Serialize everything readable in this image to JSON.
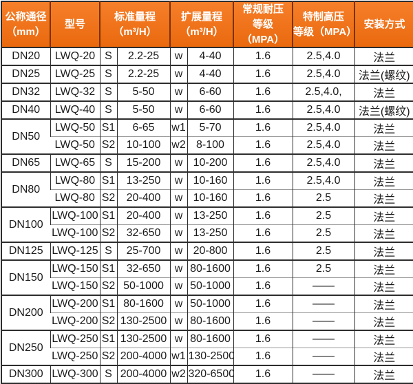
{
  "colors": {
    "header_gradient_top": "#f67f2a",
    "header_gradient_bottom": "#ea690e",
    "header_divider": "#7a3200",
    "header_text": "#ffffff",
    "outer_border": "#2d2d2d",
    "group_border": "#2d2d2d",
    "inner_row_border": "#999999",
    "body_text": "#1b1b1b",
    "body_background": "#ffffff"
  },
  "table": {
    "header": {
      "diameter": {
        "line1": "公称通径",
        "line2": "（mm）"
      },
      "model": {
        "line1": "型号"
      },
      "std_range": {
        "line1": "标准量程",
        "line2": "（m³/H）"
      },
      "ext_range": {
        "line1": "扩展量程",
        "line2": "（m³/H）"
      },
      "normal_pressure": {
        "line1": "常规耐压",
        "line2": "等级（MPA）"
      },
      "high_pressure": {
        "line1": "特制高压",
        "line2": "等级（MPA）"
      },
      "install": {
        "line1": "安装方式"
      }
    },
    "rows": [
      {
        "dn": "DN20",
        "dn_span": 1,
        "model": "LWQ-20",
        "s_code": "S",
        "std_range": "2.2-25",
        "w_code": "w",
        "ext_range": "4-40",
        "normal_mpa": "1.6",
        "high_mpa": "2.5,4.0",
        "install": "法兰"
      },
      {
        "dn": "DN25",
        "dn_span": 1,
        "model": "LWQ-25",
        "s_code": "S",
        "std_range": "2.2-25",
        "w_code": "w",
        "ext_range": "4-40",
        "normal_mpa": "1.6",
        "high_mpa": "2.5,4.0",
        "install": "法兰(螺纹)"
      },
      {
        "dn": "DN32",
        "dn_span": 1,
        "model": "LWQ-32",
        "s_code": "S",
        "std_range": "5-50",
        "w_code": "w",
        "ext_range": "6-60",
        "normal_mpa": "1.6",
        "high_mpa": "2.5,4.0,",
        "install": "法兰"
      },
      {
        "dn": "DN40",
        "dn_span": 1,
        "model": "LWQ-40",
        "s_code": "S",
        "std_range": "5-50",
        "w_code": "w",
        "ext_range": "6-60",
        "normal_mpa": "1.6",
        "high_mpa": "2.5,4.0",
        "install": "法兰(螺纹)"
      },
      {
        "dn": "DN50",
        "dn_span": 2,
        "model": "LWQ-50",
        "s_code": "S1",
        "std_range": "6-65",
        "w_code": "w1",
        "ext_range": "5-70",
        "normal_mpa": "1.6",
        "high_mpa": "2.5,4.0",
        "install": "法兰"
      },
      {
        "dn": null,
        "model": "LWQ-50",
        "s_code": "S2",
        "std_range": "10-100",
        "w_code": "w2",
        "ext_range": "8-100",
        "normal_mpa": "1.6",
        "high_mpa": "2.5,4.0",
        "install": "法兰"
      },
      {
        "dn": "DN65",
        "dn_span": 1,
        "model": "LWQ-65",
        "s_code": "S",
        "std_range": "15-200",
        "w_code": "w",
        "ext_range": "10-200",
        "normal_mpa": "1.6",
        "high_mpa": "2.5,4.0",
        "install": "法兰"
      },
      {
        "dn": "DN80",
        "dn_span": 2,
        "model": "LWQ-80",
        "s_code": "S1",
        "std_range": "13-250",
        "w_code": "w",
        "ext_range": "10-160",
        "normal_mpa": "1.6",
        "high_mpa": "2.5,4.0",
        "install": "法兰"
      },
      {
        "dn": null,
        "model": "LWQ-80",
        "s_code": "S2",
        "std_range": "20-400",
        "w_code": "w",
        "ext_range": "10-160",
        "normal_mpa": "1.6",
        "high_mpa": "2.5",
        "install": "法兰"
      },
      {
        "dn": "DN100",
        "dn_span": 2,
        "model": "LWQ-100",
        "s_code": "S1",
        "std_range": "20-400",
        "w_code": "w",
        "ext_range": "13-250",
        "normal_mpa": "1.6",
        "high_mpa": "2.5",
        "install": "法兰"
      },
      {
        "dn": null,
        "model": "LWQ-100",
        "s_code": "S2",
        "std_range": "32-650",
        "w_code": "w",
        "ext_range": "13-250",
        "normal_mpa": "1.6",
        "high_mpa": "2.5",
        "install": "法兰"
      },
      {
        "dn": "DN125",
        "dn_span": 1,
        "model": "LWQ-125",
        "s_code": "S",
        "std_range": "25-700",
        "w_code": "w",
        "ext_range": "20-800",
        "normal_mpa": "1.6",
        "high_mpa": "2.5",
        "install": "法兰"
      },
      {
        "dn": "DN150",
        "dn_span": 2,
        "model": "LWQ-150",
        "s_code": "S1",
        "std_range": "32-650",
        "w_code": "w",
        "ext_range": "80-1600",
        "normal_mpa": "1.6",
        "high_mpa": "2.5",
        "install": "法兰"
      },
      {
        "dn": null,
        "model": "LWQ-150",
        "s_code": "S2",
        "std_range": "50-1000",
        "w_code": "w",
        "ext_range": "50-1000",
        "normal_mpa": "1.6",
        "high_mpa": "——",
        "install": "法兰"
      },
      {
        "dn": "DN200",
        "dn_span": 2,
        "model": "LWQ-200",
        "s_code": "S1",
        "std_range": "80-1600",
        "w_code": "w",
        "ext_range": "50-1000",
        "normal_mpa": "1.6",
        "high_mpa": "——",
        "install": "法兰"
      },
      {
        "dn": null,
        "model": "LWQ-200",
        "s_code": "S2",
        "std_range": "130-2500",
        "w_code": "w",
        "ext_range": "80-1600",
        "normal_mpa": "1.6",
        "high_mpa": "——",
        "install": "法兰"
      },
      {
        "dn": "DN250",
        "dn_span": 2,
        "model": "LWQ-250",
        "s_code": "S1",
        "std_range": "130-2500",
        "w_code": "w",
        "ext_range": "80-1600",
        "normal_mpa": "1.6",
        "high_mpa": "——",
        "install": "法兰"
      },
      {
        "dn": null,
        "model": "LWQ-250",
        "s_code": "S2",
        "std_range": "200-4000",
        "w_code": "w1",
        "ext_range": "130-2500",
        "normal_mpa": "1.6",
        "high_mpa": "——",
        "install": "法兰"
      },
      {
        "dn": "DN300",
        "dn_span": 1,
        "model": "LWQ-300",
        "s_code": "S",
        "std_range": "200-4000",
        "w_code": "w2",
        "ext_range": "320-6500",
        "normal_mpa": "1.6",
        "high_mpa": "——",
        "install": "法兰"
      }
    ]
  }
}
